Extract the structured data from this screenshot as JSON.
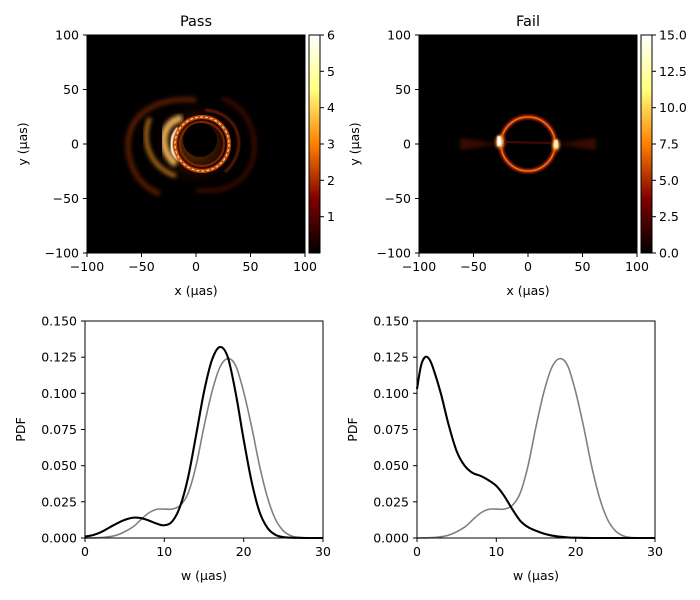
{
  "chart_data": [
    {
      "type": "heatmap",
      "title": "Pass",
      "xlabel": "x (μas)",
      "ylabel": "y (μas)",
      "xlim": [
        -100,
        100
      ],
      "ylim": [
        -100,
        100
      ],
      "xticks": [
        "−100",
        "−50",
        "0",
        "50",
        "100"
      ],
      "yticks": [
        "−100",
        "−50",
        "0",
        "50",
        "100"
      ],
      "colormap": "afmhot",
      "colorbar": {
        "range": [
          0,
          6
        ],
        "ticks": [
          "1",
          "2",
          "3",
          "4",
          "5",
          "6"
        ]
      },
      "description_values": {
        "ring_radius": 27,
        "bright_side": "left",
        "spiral_arms": true
      }
    },
    {
      "type": "heatmap",
      "title": "Fail",
      "xlabel": "x (μas)",
      "ylabel": "y (μas)",
      "xlim": [
        -100,
        100
      ],
      "ylim": [
        -100,
        100
      ],
      "xticks": [
        "−100",
        "−50",
        "0",
        "50",
        "100"
      ],
      "yticks": [
        "−100",
        "−50",
        "0",
        "50",
        "100"
      ],
      "colormap": "afmhot",
      "colorbar": {
        "range": [
          0,
          15
        ],
        "ticks": [
          "0.0",
          "2.5",
          "5.0",
          "7.5",
          "10.0",
          "12.5",
          "15.0"
        ]
      },
      "description_values": {
        "ring_radius": 27,
        "bright_side": "both"
      }
    },
    {
      "type": "line",
      "xlabel": "w (μas)",
      "ylabel": "PDF",
      "xlim": [
        0,
        30
      ],
      "ylim": [
        0,
        0.15
      ],
      "xticks": [
        "0",
        "10",
        "20",
        "30"
      ],
      "yticks": [
        "0.000",
        "0.025",
        "0.050",
        "0.075",
        "0.100",
        "0.125",
        "0.150"
      ],
      "series": [
        {
          "color": "#808080",
          "x": [
            0,
            2,
            4,
            6,
            7,
            8,
            9,
            10,
            11,
            12,
            13,
            14,
            15,
            16,
            17,
            18,
            19,
            20,
            21,
            22,
            23,
            24,
            25,
            26,
            27,
            28,
            30
          ],
          "y": [
            0,
            0.0003,
            0.002,
            0.0075,
            0.0125,
            0.0172,
            0.0198,
            0.02,
            0.02,
            0.0225,
            0.031,
            0.05,
            0.077,
            0.101,
            0.118,
            0.124,
            0.119,
            0.101,
            0.077,
            0.05,
            0.028,
            0.013,
            0.005,
            0.0015,
            0.0003,
            0.0001,
            0
          ]
        },
        {
          "color": "#000000",
          "x": [
            0,
            1,
            2,
            3,
            4,
            5,
            6,
            7,
            8,
            9,
            10,
            11,
            12,
            13,
            14,
            15,
            16,
            17,
            18,
            19,
            20,
            21,
            22,
            23,
            24,
            25,
            26,
            27,
            28,
            30
          ],
          "y": [
            0.001,
            0.002,
            0.004,
            0.007,
            0.01,
            0.0125,
            0.014,
            0.0138,
            0.0122,
            0.01,
            0.0088,
            0.0115,
            0.022,
            0.042,
            0.071,
            0.101,
            0.123,
            0.132,
            0.125,
            0.1,
            0.068,
            0.039,
            0.018,
            0.007,
            0.0022,
            0.0006,
            0.0002,
            0.0001,
            0,
            0
          ]
        }
      ]
    },
    {
      "type": "line",
      "xlabel": "w (μas)",
      "ylabel": "PDF",
      "xlim": [
        0,
        30
      ],
      "ylim": [
        0,
        0.15
      ],
      "xticks": [
        "0",
        "10",
        "20",
        "30"
      ],
      "yticks": [
        "0.000",
        "0.025",
        "0.050",
        "0.075",
        "0.100",
        "0.125",
        "0.150"
      ],
      "series": [
        {
          "color": "#808080",
          "x": [
            0,
            2,
            4,
            6,
            7,
            8,
            9,
            10,
            11,
            12,
            13,
            14,
            15,
            16,
            17,
            18,
            19,
            20,
            21,
            22,
            23,
            24,
            25,
            26,
            27,
            28,
            30
          ],
          "y": [
            0,
            0.0003,
            0.002,
            0.0075,
            0.0125,
            0.0172,
            0.0198,
            0.02,
            0.02,
            0.0225,
            0.031,
            0.05,
            0.077,
            0.101,
            0.118,
            0.124,
            0.119,
            0.101,
            0.077,
            0.05,
            0.028,
            0.013,
            0.005,
            0.0015,
            0.0003,
            0.0001,
            0
          ]
        },
        {
          "color": "#000000",
          "x": [
            0,
            0.5,
            1,
            1.5,
            2,
            3,
            4,
            5,
            6,
            7,
            8,
            9,
            10,
            11,
            12,
            13,
            14,
            15,
            16,
            17,
            18,
            19,
            20,
            22,
            24,
            30
          ],
          "y": [
            0.103,
            0.119,
            0.125,
            0.124,
            0.118,
            0.1,
            0.078,
            0.06,
            0.05,
            0.045,
            0.043,
            0.04,
            0.036,
            0.029,
            0.02,
            0.012,
            0.0075,
            0.005,
            0.003,
            0.0017,
            0.0009,
            0.0004,
            0.0002,
            0,
            0,
            0
          ]
        }
      ]
    }
  ]
}
